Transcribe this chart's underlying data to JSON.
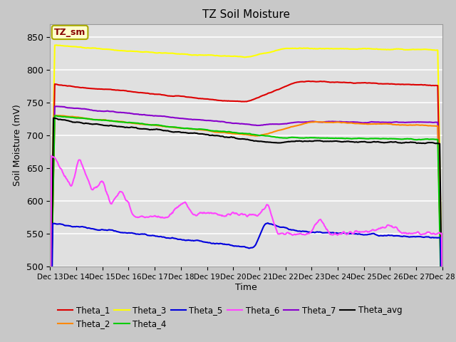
{
  "title": "TZ Soil Moisture",
  "xlabel": "Time",
  "ylabel": "Soil Moisture (mV)",
  "ylim": [
    500,
    870
  ],
  "xlim": [
    0,
    15
  ],
  "xtick_labels": [
    "Dec 13",
    "Dec 14",
    "Dec 15",
    "Dec 16",
    "Dec 17",
    "Dec 18",
    "Dec 19",
    "Dec 20",
    "Dec 21",
    "Dec 22",
    "Dec 23",
    "Dec 24",
    "Dec 25",
    "Dec 26",
    "Dec 27",
    "Dec 28"
  ],
  "ytick_vals": [
    500,
    550,
    600,
    650,
    700,
    750,
    800,
    850
  ],
  "fig_facecolor": "#c8c8c8",
  "plot_bg_color": "#e0e0e0",
  "label_box_facecolor": "#ffffcc",
  "label_box_edgecolor": "#aaaa00",
  "label_text": "TZ_sm",
  "label_text_color": "#880000",
  "grid_color": "#ffffff",
  "series": {
    "Theta_1": {
      "color": "#dd0000"
    },
    "Theta_2": {
      "color": "#ff8800"
    },
    "Theta_3": {
      "color": "#ffff00"
    },
    "Theta_4": {
      "color": "#00cc00"
    },
    "Theta_5": {
      "color": "#0000dd"
    },
    "Theta_6": {
      "color": "#ff44ff"
    },
    "Theta_7": {
      "color": "#8800cc"
    },
    "Theta_avg": {
      "color": "#000000"
    }
  }
}
